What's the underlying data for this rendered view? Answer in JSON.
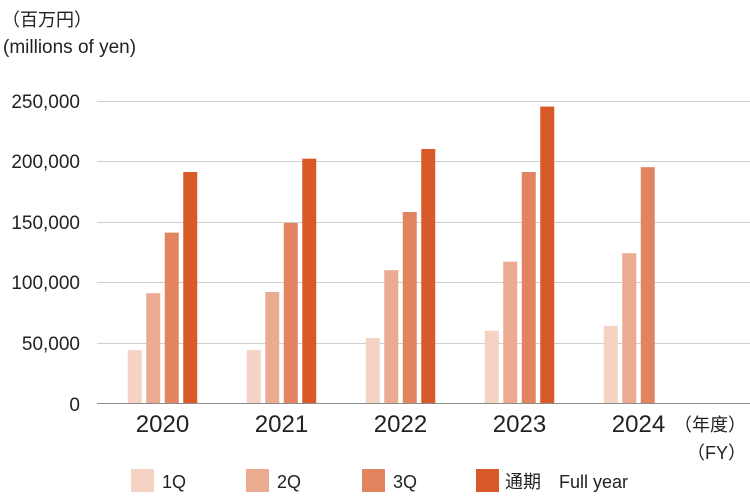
{
  "chart_data": {
    "type": "bar",
    "ylabel": "（百万円）",
    "ylabel_sub": "(millions of yen)",
    "xlabel": "（年度）",
    "xlabel_sub": "（FY）",
    "categories": [
      "2020",
      "2021",
      "2022",
      "2023",
      "2024"
    ],
    "series": [
      {
        "name": "1Q",
        "color": "#f4d2c4",
        "values": [
          44000,
          44000,
          54000,
          60000,
          64000
        ]
      },
      {
        "name": "2Q",
        "color": "#ebab91",
        "values": [
          91000,
          92000,
          110000,
          117000,
          124000
        ]
      },
      {
        "name": "3Q",
        "color": "#e1845f",
        "values": [
          141000,
          149000,
          158000,
          191000,
          195000
        ]
      },
      {
        "name": "通期　Full year",
        "color": "#d75a28",
        "values": [
          191000,
          202000,
          210000,
          245000,
          null
        ]
      }
    ],
    "ylim": [
      0,
      250000
    ],
    "yticks": [
      0,
      50000,
      100000,
      150000,
      200000,
      250000
    ],
    "ytick_labels": [
      "0",
      "50,000",
      "100,000",
      "150,000",
      "200,000",
      "250,000"
    ],
    "grid": true,
    "legend": "bottom"
  }
}
